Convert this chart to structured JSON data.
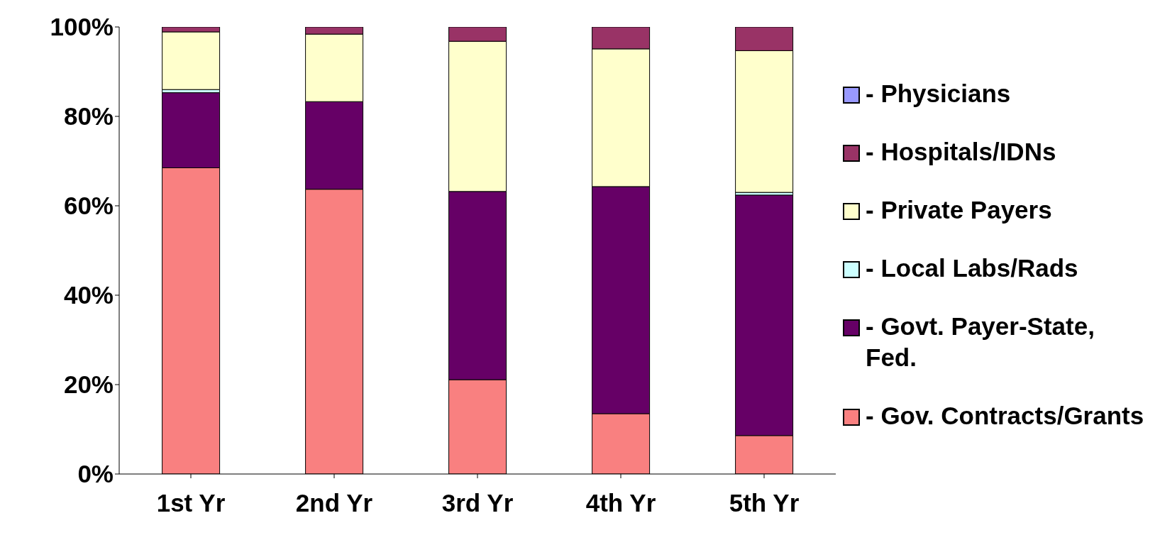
{
  "chart_data": {
    "type": "bar",
    "stacked": true,
    "categories": [
      "1st Yr",
      "2nd Yr",
      "3rd Yr",
      "4th Yr",
      "5th Yr"
    ],
    "series": [
      {
        "name": "- Gov. Contracts/Grants",
        "color": "#f98080",
        "values": [
          68.5,
          63.7,
          21.1,
          13.5,
          8.6
        ]
      },
      {
        "name": "- Govt. Payer-State, Fed.",
        "color": "#660066",
        "values": [
          16.8,
          19.6,
          42.1,
          50.8,
          53.8
        ]
      },
      {
        "name": "- Local Labs/Rads",
        "color": "#ccffff",
        "values": [
          0.7,
          0,
          0,
          0,
          0.6
        ]
      },
      {
        "name": "- Private Payers",
        "color": "#ffffcc",
        "values": [
          12.9,
          15.1,
          33.6,
          30.8,
          31.7
        ]
      },
      {
        "name": "- Hospitals/IDNs",
        "color": "#993366",
        "values": [
          1.1,
          1.6,
          3.2,
          4.9,
          5.3
        ]
      },
      {
        "name": "- Physicians",
        "color": "#9999ff",
        "values": [
          0,
          0,
          0,
          0,
          0
        ]
      }
    ],
    "ylim": [
      0,
      100
    ],
    "yticks": [
      {
        "value": 0,
        "label": "0%"
      },
      {
        "value": 20,
        "label": "20%"
      },
      {
        "value": 40,
        "label": "40%"
      },
      {
        "value": 60,
        "label": "60%"
      },
      {
        "value": 80,
        "label": "80%"
      },
      {
        "value": 100,
        "label": "100%"
      }
    ],
    "grid": false,
    "legend": "right"
  }
}
